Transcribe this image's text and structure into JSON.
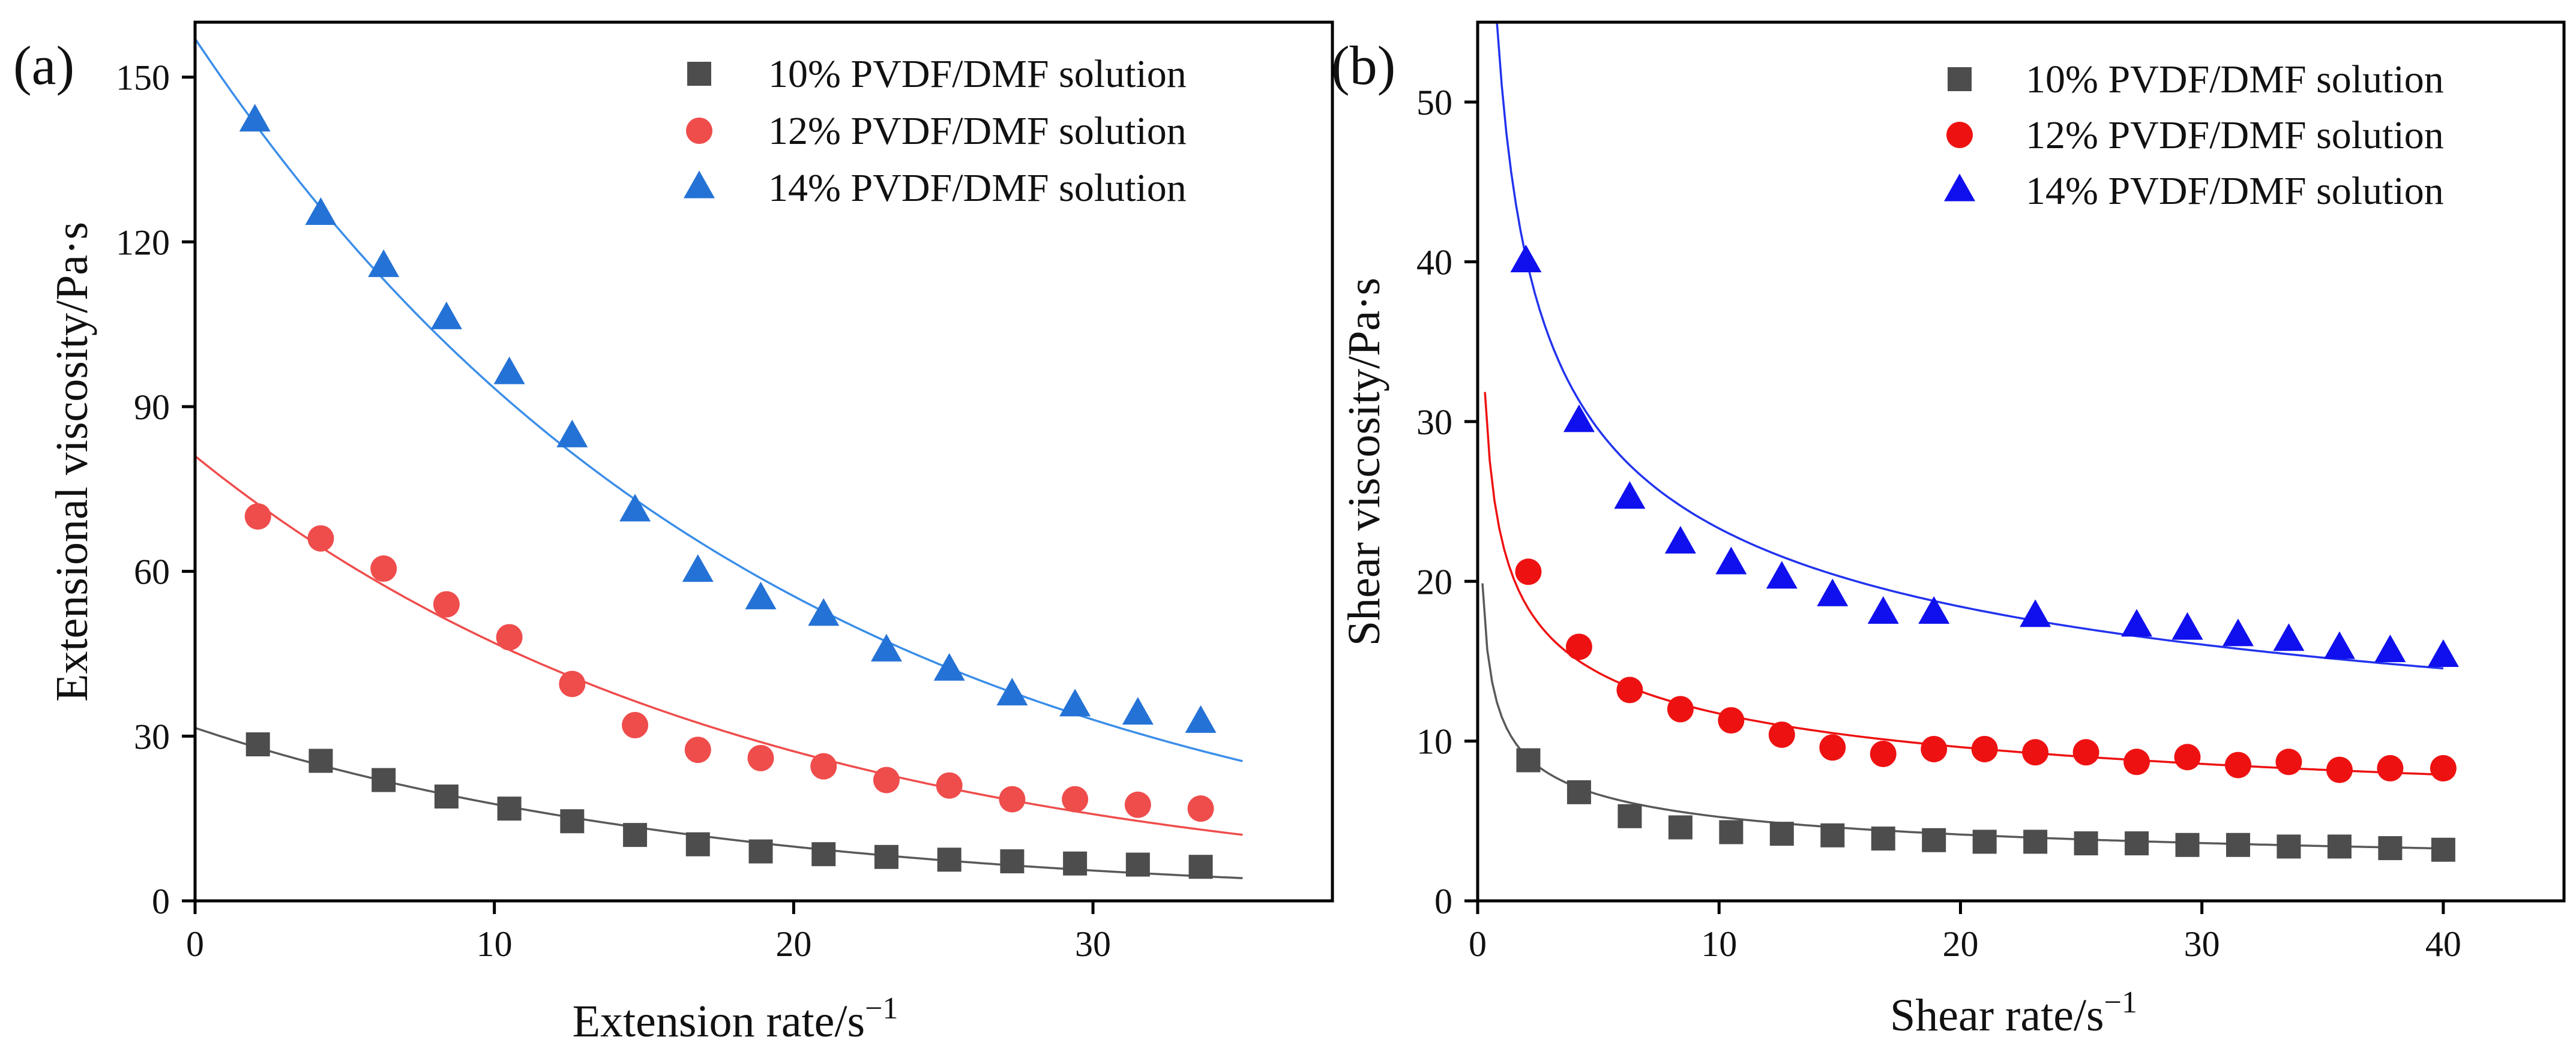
{
  "chart_data": [
    {
      "type": "scatter",
      "panel_label": "(a)",
      "xlabel": "Extension rate/s",
      "xlabel_sup": "−1",
      "ylabel": "Extensional viscosity/Pa·s",
      "xlim": [
        0,
        38
      ],
      "ylim": [
        0,
        160
      ],
      "xticks": [
        0,
        10,
        20,
        30
      ],
      "yticks": [
        0,
        30,
        60,
        90,
        120,
        150
      ],
      "grid": false,
      "legend_position": "top-right",
      "fit": "exponential",
      "series": [
        {
          "name": "10% PVDF/DMF solution",
          "marker": "square",
          "color": "#4d4d4d",
          "line_color": "#595959",
          "x": [
            2.1,
            4.2,
            6.3,
            8.4,
            10.5,
            12.6,
            14.7,
            16.8,
            18.9,
            21.0,
            23.1,
            25.2,
            27.3,
            29.4,
            31.5,
            33.6
          ],
          "y": [
            28.5,
            25.5,
            22.0,
            19.0,
            16.8,
            14.5,
            12.0,
            10.3,
            9.0,
            8.5,
            8.0,
            7.5,
            7.2,
            6.8,
            6.6,
            6.2
          ],
          "fit_range": [
            0,
            35
          ],
          "fit_params": {
            "a": 31.5,
            "b": 0.058
          }
        },
        {
          "name": "12% PVDF/DMF solution",
          "marker": "circle",
          "color": "#ef4c4c",
          "line_color": "#ef4c4c",
          "x": [
            2.1,
            4.2,
            6.3,
            8.4,
            10.5,
            12.6,
            14.7,
            16.8,
            18.9,
            21.0,
            23.1,
            25.2,
            27.3,
            29.4,
            31.5,
            33.6
          ],
          "y": [
            70,
            66,
            60.5,
            54,
            48,
            39.5,
            32,
            27.5,
            26,
            24.5,
            22,
            21,
            18.5,
            18.5,
            17.5,
            16.8
          ],
          "fit_range": [
            0,
            35
          ],
          "fit_params": {
            "a": 81,
            "b": 0.0545
          }
        },
        {
          "name": "14% PVDF/DMF solution",
          "marker": "triangle",
          "color": "#2472d6",
          "line_color": "#3b8ee8",
          "x": [
            2.0,
            4.2,
            6.3,
            8.4,
            10.5,
            12.6,
            14.7,
            16.8,
            18.9,
            21.0,
            23.1,
            25.2,
            27.3,
            29.4,
            31.5,
            33.6
          ],
          "y": [
            142,
            125,
            115.5,
            106,
            96,
            84.5,
            71,
            60,
            55,
            52,
            45.5,
            42,
            37.5,
            35.5,
            34,
            32.5
          ],
          "fit_range": [
            0,
            35
          ],
          "fit_params": {
            "a": 157,
            "b": 0.052
          }
        }
      ]
    },
    {
      "type": "scatter",
      "panel_label": "(b)",
      "xlabel": "Shear rate/s",
      "xlabel_sup": "−1",
      "ylabel": "Shear viscosity/Pa·s",
      "xlim": [
        0,
        45
      ],
      "ylim": [
        0,
        55
      ],
      "xticks": [
        0,
        10,
        20,
        30,
        40
      ],
      "yticks": [
        0,
        10,
        20,
        30,
        40,
        50
      ],
      "grid": false,
      "legend_position": "top-right",
      "fit": "power",
      "series": [
        {
          "name": "10% PVDF/DMF solution",
          "marker": "square",
          "color": "#4d4d4d",
          "line_color": "#595959",
          "x": [
            2.1,
            4.2,
            6.3,
            8.4,
            10.5,
            12.6,
            14.7,
            16.8,
            18.9,
            21.0,
            23.1,
            25.2,
            27.3,
            29.4,
            31.5,
            33.6,
            35.7,
            37.8,
            40.0
          ],
          "y": [
            8.8,
            6.8,
            5.3,
            4.6,
            4.3,
            4.2,
            4.1,
            3.9,
            3.8,
            3.7,
            3.7,
            3.6,
            3.6,
            3.5,
            3.5,
            3.4,
            3.4,
            3.3,
            3.2
          ],
          "fit_range": [
            0.2,
            40
          ],
          "fit_params": {
            "k": 11.5,
            "n": 0.34
          }
        },
        {
          "name": "12% PVDF/DMF solution",
          "marker": "circle",
          "color": "#ee1111",
          "line_color": "#ee1111",
          "x": [
            2.1,
            4.2,
            6.3,
            8.4,
            10.5,
            12.6,
            14.7,
            16.8,
            18.9,
            21.0,
            23.1,
            25.2,
            27.3,
            29.4,
            31.5,
            33.6,
            35.7,
            37.8,
            40.0
          ],
          "y": [
            20.6,
            15.9,
            13.2,
            12.0,
            11.3,
            10.4,
            9.6,
            9.2,
            9.5,
            9.5,
            9.3,
            9.3,
            8.7,
            9.0,
            8.5,
            8.7,
            8.2,
            8.3,
            8.3
          ],
          "fit_range": [
            0.3,
            40
          ],
          "fit_params": {
            "k": 22.6,
            "n": 0.285
          }
        },
        {
          "name": "14% PVDF/DMF solution",
          "marker": "triangle",
          "color": "#1010ee",
          "line_color": "#2233ee",
          "x": [
            2.0,
            4.2,
            6.3,
            8.4,
            10.5,
            12.6,
            14.7,
            16.8,
            18.9,
            23.1,
            27.3,
            29.4,
            31.5,
            33.6,
            35.7,
            37.8,
            40.0
          ],
          "y": [
            40,
            30,
            25.2,
            22.4,
            21.1,
            20.2,
            19.1,
            18.0,
            18.0,
            17.8,
            17.2,
            17.0,
            16.6,
            16.3,
            15.8,
            15.6,
            15.3
          ],
          "fit_range": [
            0.8,
            40
          ],
          "fit_params": {
            "k": 51.0,
            "n": 0.34
          }
        }
      ]
    }
  ]
}
